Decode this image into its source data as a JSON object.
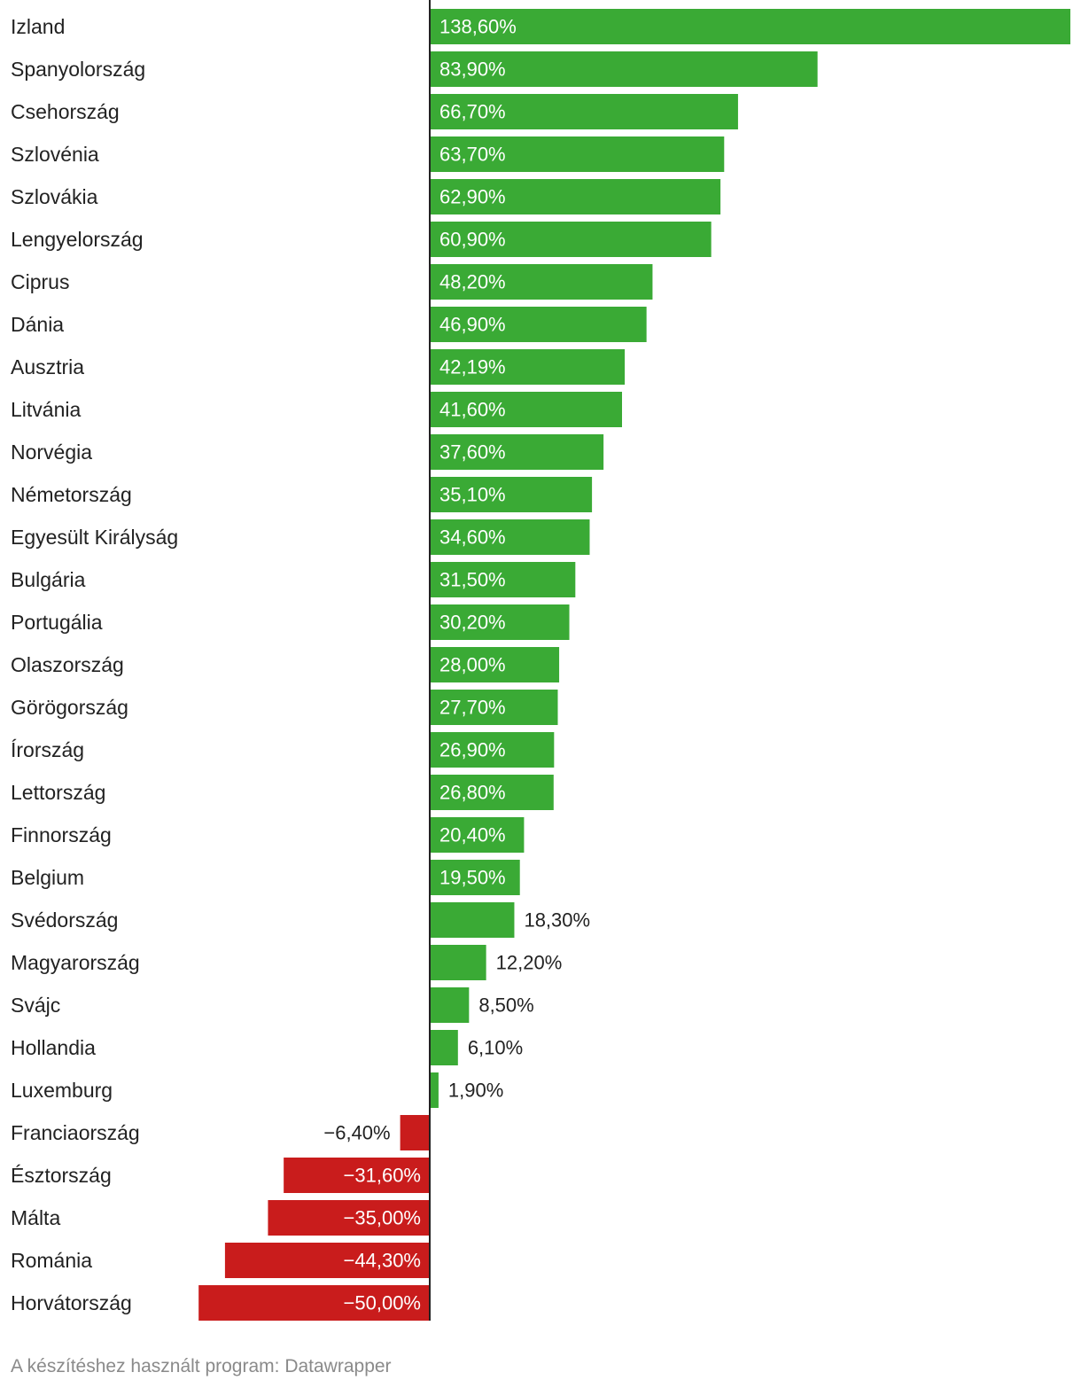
{
  "chart_data": {
    "type": "bar",
    "orientation": "horizontal",
    "categories": [
      "Izland",
      "Spanyolország",
      "Csehország",
      "Szlovénia",
      "Szlovákia",
      "Lengyelország",
      "Ciprus",
      "Dánia",
      "Ausztria",
      "Litvánia",
      "Norvégia",
      "Németország",
      "Egyesült Királyság",
      "Bulgária",
      "Portugália",
      "Olaszország",
      "Görögország",
      "Írország",
      "Lettország",
      "Finnország",
      "Belgium",
      "Svédország",
      "Magyarország",
      "Svájc",
      "Hollandia",
      "Luxemburg",
      "Franciaország",
      "Észtország",
      "Málta",
      "Románia",
      "Horvátország"
    ],
    "values": [
      138.6,
      83.9,
      66.7,
      63.7,
      62.9,
      60.9,
      48.2,
      46.9,
      42.19,
      41.6,
      37.6,
      35.1,
      34.6,
      31.5,
      30.2,
      28.0,
      27.7,
      26.9,
      26.8,
      20.4,
      19.5,
      18.3,
      12.2,
      8.5,
      6.1,
      1.9,
      -6.4,
      -31.6,
      -35.0,
      -44.3,
      -50.0
    ],
    "value_labels": [
      "138,60%",
      "83,90%",
      "66,70%",
      "63,70%",
      "62,90%",
      "60,90%",
      "48,20%",
      "46,90%",
      "42,19%",
      "41,60%",
      "37,60%",
      "35,10%",
      "34,60%",
      "31,50%",
      "30,20%",
      "28,00%",
      "27,70%",
      "26,90%",
      "26,80%",
      "20,40%",
      "19,50%",
      "18,30%",
      "12,20%",
      "8,50%",
      "6,10%",
      "1,90%",
      "−6,40%",
      "−31,60%",
      "−35,00%",
      "−44,30%",
      "−50,00%"
    ],
    "xlim": [
      -50,
      138.6
    ],
    "grid": false,
    "colors": {
      "positive": "#3aaa35",
      "negative": "#c91c1c",
      "axis": "#222222",
      "label_inside": "#ffffff",
      "label_outside": "#222222",
      "category_text": "#222222"
    }
  },
  "footer": {
    "credit": "A készítéshez használt program: Datawrapper"
  }
}
